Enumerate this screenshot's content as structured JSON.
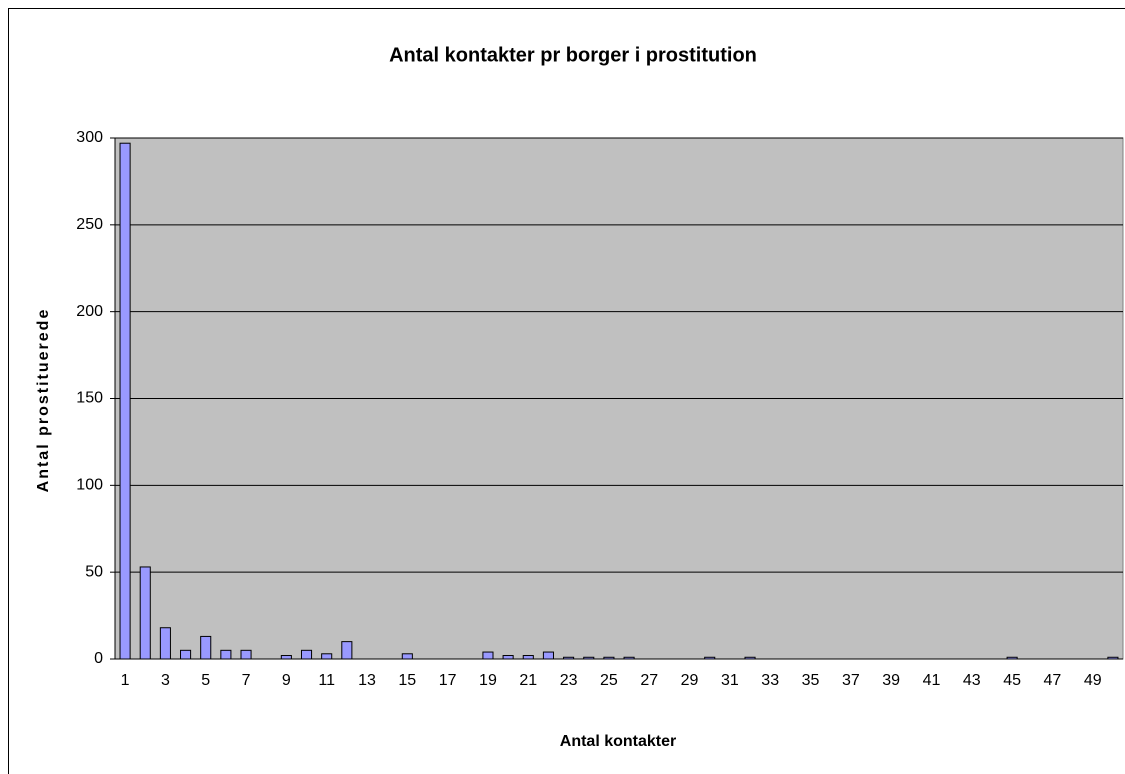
{
  "chart_data": {
    "type": "bar",
    "title": "Antal kontakter pr borger i prostitution",
    "x_label": "Antal kontakter",
    "y_label": "Antal prostituerede",
    "categories": [
      "1",
      null,
      "3",
      null,
      "5",
      null,
      "7",
      null,
      "9",
      null,
      "11",
      null,
      "13",
      null,
      "15",
      null,
      "17",
      null,
      "19",
      null,
      "21",
      null,
      "23",
      null,
      "25",
      null,
      "27",
      null,
      "29",
      null,
      "31",
      null,
      "33",
      null,
      "35",
      null,
      "37",
      null,
      "39",
      null,
      "41",
      null,
      "43",
      null,
      "45",
      null,
      "47",
      null,
      "49",
      null
    ],
    "values": [
      297,
      53,
      18,
      5,
      13,
      5,
      5,
      0,
      2,
      5,
      3,
      10,
      0,
      0,
      3,
      0,
      0,
      0,
      4,
      2,
      2,
      4,
      1,
      1,
      1,
      1,
      0,
      0,
      0,
      1,
      0,
      1,
      0,
      0,
      0,
      0,
      0,
      0,
      0,
      0,
      0,
      0,
      0,
      0,
      1,
      0,
      0,
      0,
      0,
      1
    ],
    "color": "#9999ff",
    "plot_background": "#c0c0c0",
    "ylim": [
      0,
      300
    ],
    "yticks": [
      0,
      50,
      100,
      150,
      200,
      250,
      300
    ],
    "grid": true
  }
}
